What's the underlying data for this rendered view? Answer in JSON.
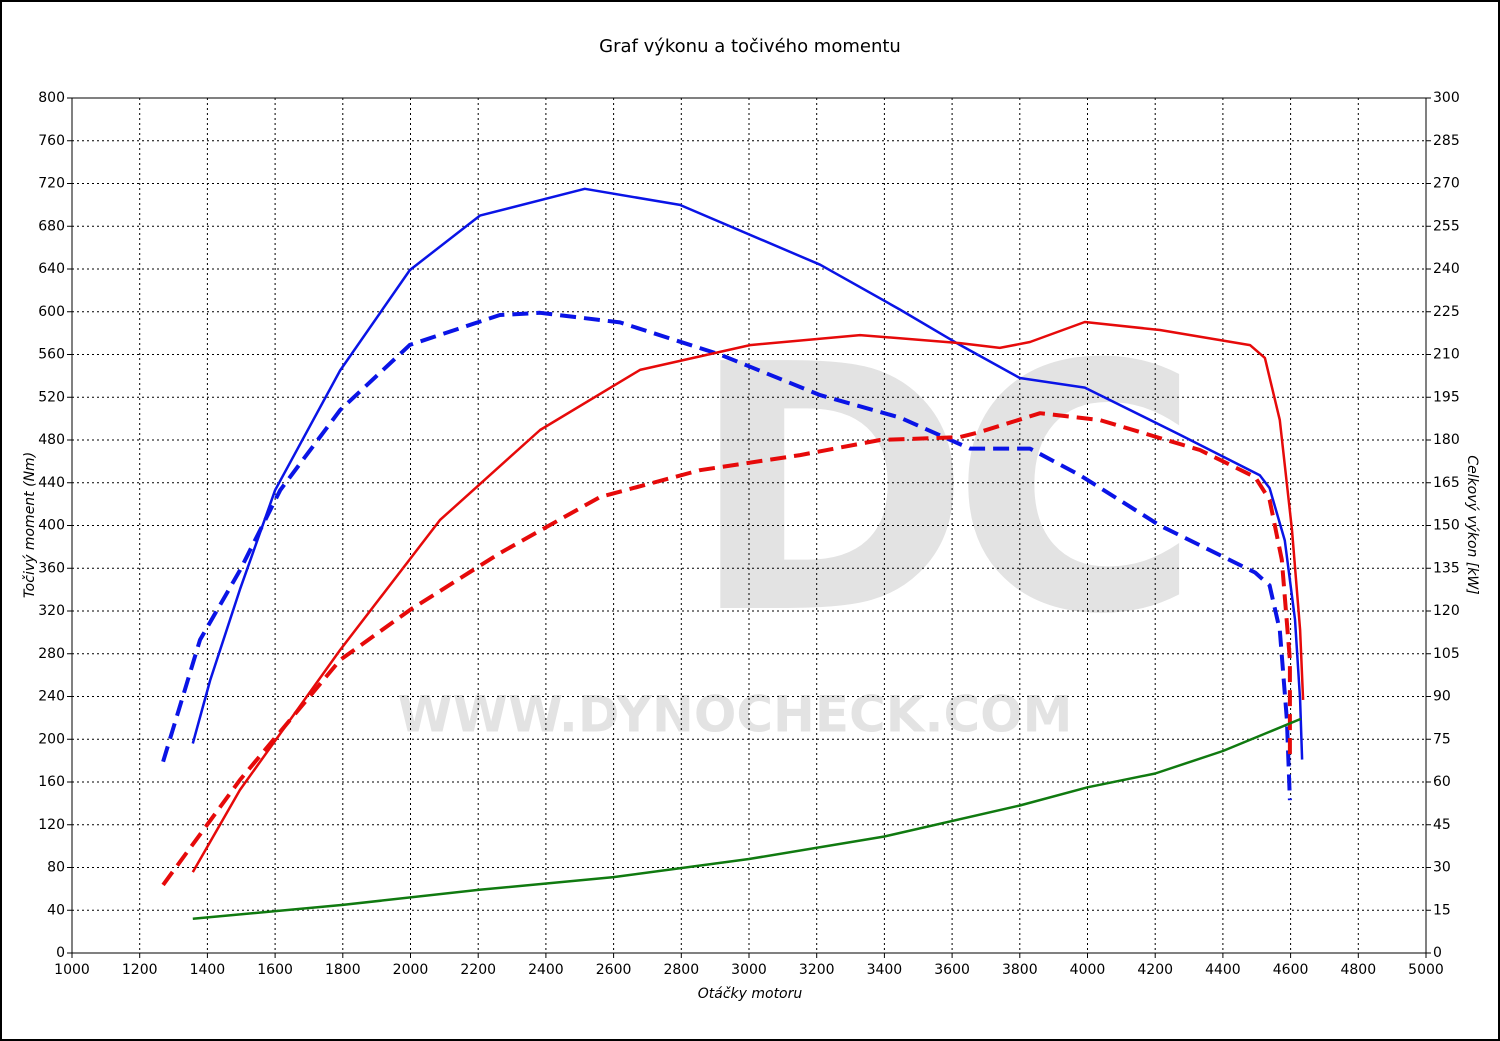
{
  "chart_data": {
    "type": "line",
    "title": "Graf výkonu a točivého momentu",
    "xlabel": "Otáčky motoru",
    "ylabel": "Točivý moment (Nm)",
    "y2label": "Celkový výkon [kW]",
    "watermark": "DC",
    "watermark_url": "WWW.DYNOCHECK.COM",
    "xlim": [
      1000,
      5000
    ],
    "xticks": [
      1000,
      1200,
      1400,
      1600,
      1800,
      2000,
      2200,
      2400,
      2600,
      2800,
      3000,
      3200,
      3400,
      3600,
      3800,
      4000,
      4200,
      4400,
      4600,
      4800,
      5000
    ],
    "ylim": [
      0,
      800
    ],
    "yticks": [
      0,
      40,
      80,
      120,
      160,
      200,
      240,
      280,
      320,
      360,
      400,
      440,
      480,
      520,
      560,
      600,
      640,
      680,
      720,
      760,
      800
    ],
    "y2lim": [
      0,
      300
    ],
    "y2ticks": [
      0,
      15,
      30,
      45,
      60,
      75,
      90,
      105,
      120,
      135,
      150,
      165,
      180,
      195,
      210,
      225,
      240,
      255,
      270,
      285,
      300
    ],
    "grid": true,
    "series": [
      {
        "color": "#0a14e6",
        "dashed": false,
        "axis": "y",
        "x": [
          1357,
          1408,
          1496,
          1600,
          1792,
          1998,
          2205,
          2515,
          2796,
          3210,
          3446,
          3623,
          3800,
          3992,
          4273,
          4509,
          4538,
          4583,
          4613,
          4628,
          4634
        ],
        "values": [
          196,
          255,
          340,
          433,
          545,
          639,
          690,
          715,
          700,
          644,
          602,
          569,
          538,
          529,
          485,
          447,
          435,
          386,
          312,
          237,
          181
        ]
      },
      {
        "color": "#0a14e6",
        "dashed": true,
        "axis": "y",
        "x": [
          1269,
          1378,
          1496,
          1615,
          1792,
          1998,
          2264,
          2383,
          2619,
          2914,
          3210,
          3446,
          3653,
          3830,
          3978,
          4214,
          4495,
          4538,
          4568,
          4589,
          4598
        ],
        "values": [
          179,
          293,
          358,
          433,
          508,
          569,
          597,
          599,
          590,
          560,
          522,
          501,
          472,
          472,
          447,
          400,
          356,
          344,
          302,
          218,
          143
        ]
      },
      {
        "color": "#e60a0a",
        "dashed": false,
        "axis": "y2",
        "x": [
          1357,
          1496,
          1792,
          2087,
          2383,
          2678,
          3003,
          3328,
          3623,
          3741,
          3830,
          3992,
          4214,
          4480,
          4524,
          4568,
          4604,
          4628,
          4637
        ],
        "values": [
          28.4,
          57.2,
          106.3,
          151.9,
          183.5,
          204.6,
          213.3,
          216.8,
          214,
          212.3,
          214.4,
          221.4,
          218.6,
          213.3,
          208.8,
          187,
          148.4,
          113.4,
          88.8
        ]
      },
      {
        "color": "#e60a0a",
        "dashed": true,
        "axis": "y2",
        "x": [
          1269,
          1496,
          1792,
          1998,
          2264,
          2560,
          2855,
          3151,
          3387,
          3623,
          3682,
          3860,
          4037,
          4332,
          4495,
          4538,
          4574,
          4598,
          4598
        ],
        "values": [
          23.9,
          60.7,
          102.8,
          120.3,
          140.3,
          160,
          169.4,
          174.7,
          180,
          181,
          182.8,
          189.4,
          187,
          176.5,
          167,
          159,
          138,
          102.8,
          67.7
        ]
      },
      {
        "color": "#107a10",
        "dashed": false,
        "axis": "y",
        "x": [
          1357,
          1800,
          2200,
          2600,
          3000,
          3400,
          3800,
          4000,
          4200,
          4400,
          4630
        ],
        "values": [
          32,
          45,
          59,
          71,
          88,
          109,
          138,
          155,
          168,
          189,
          219
        ]
      }
    ]
  }
}
